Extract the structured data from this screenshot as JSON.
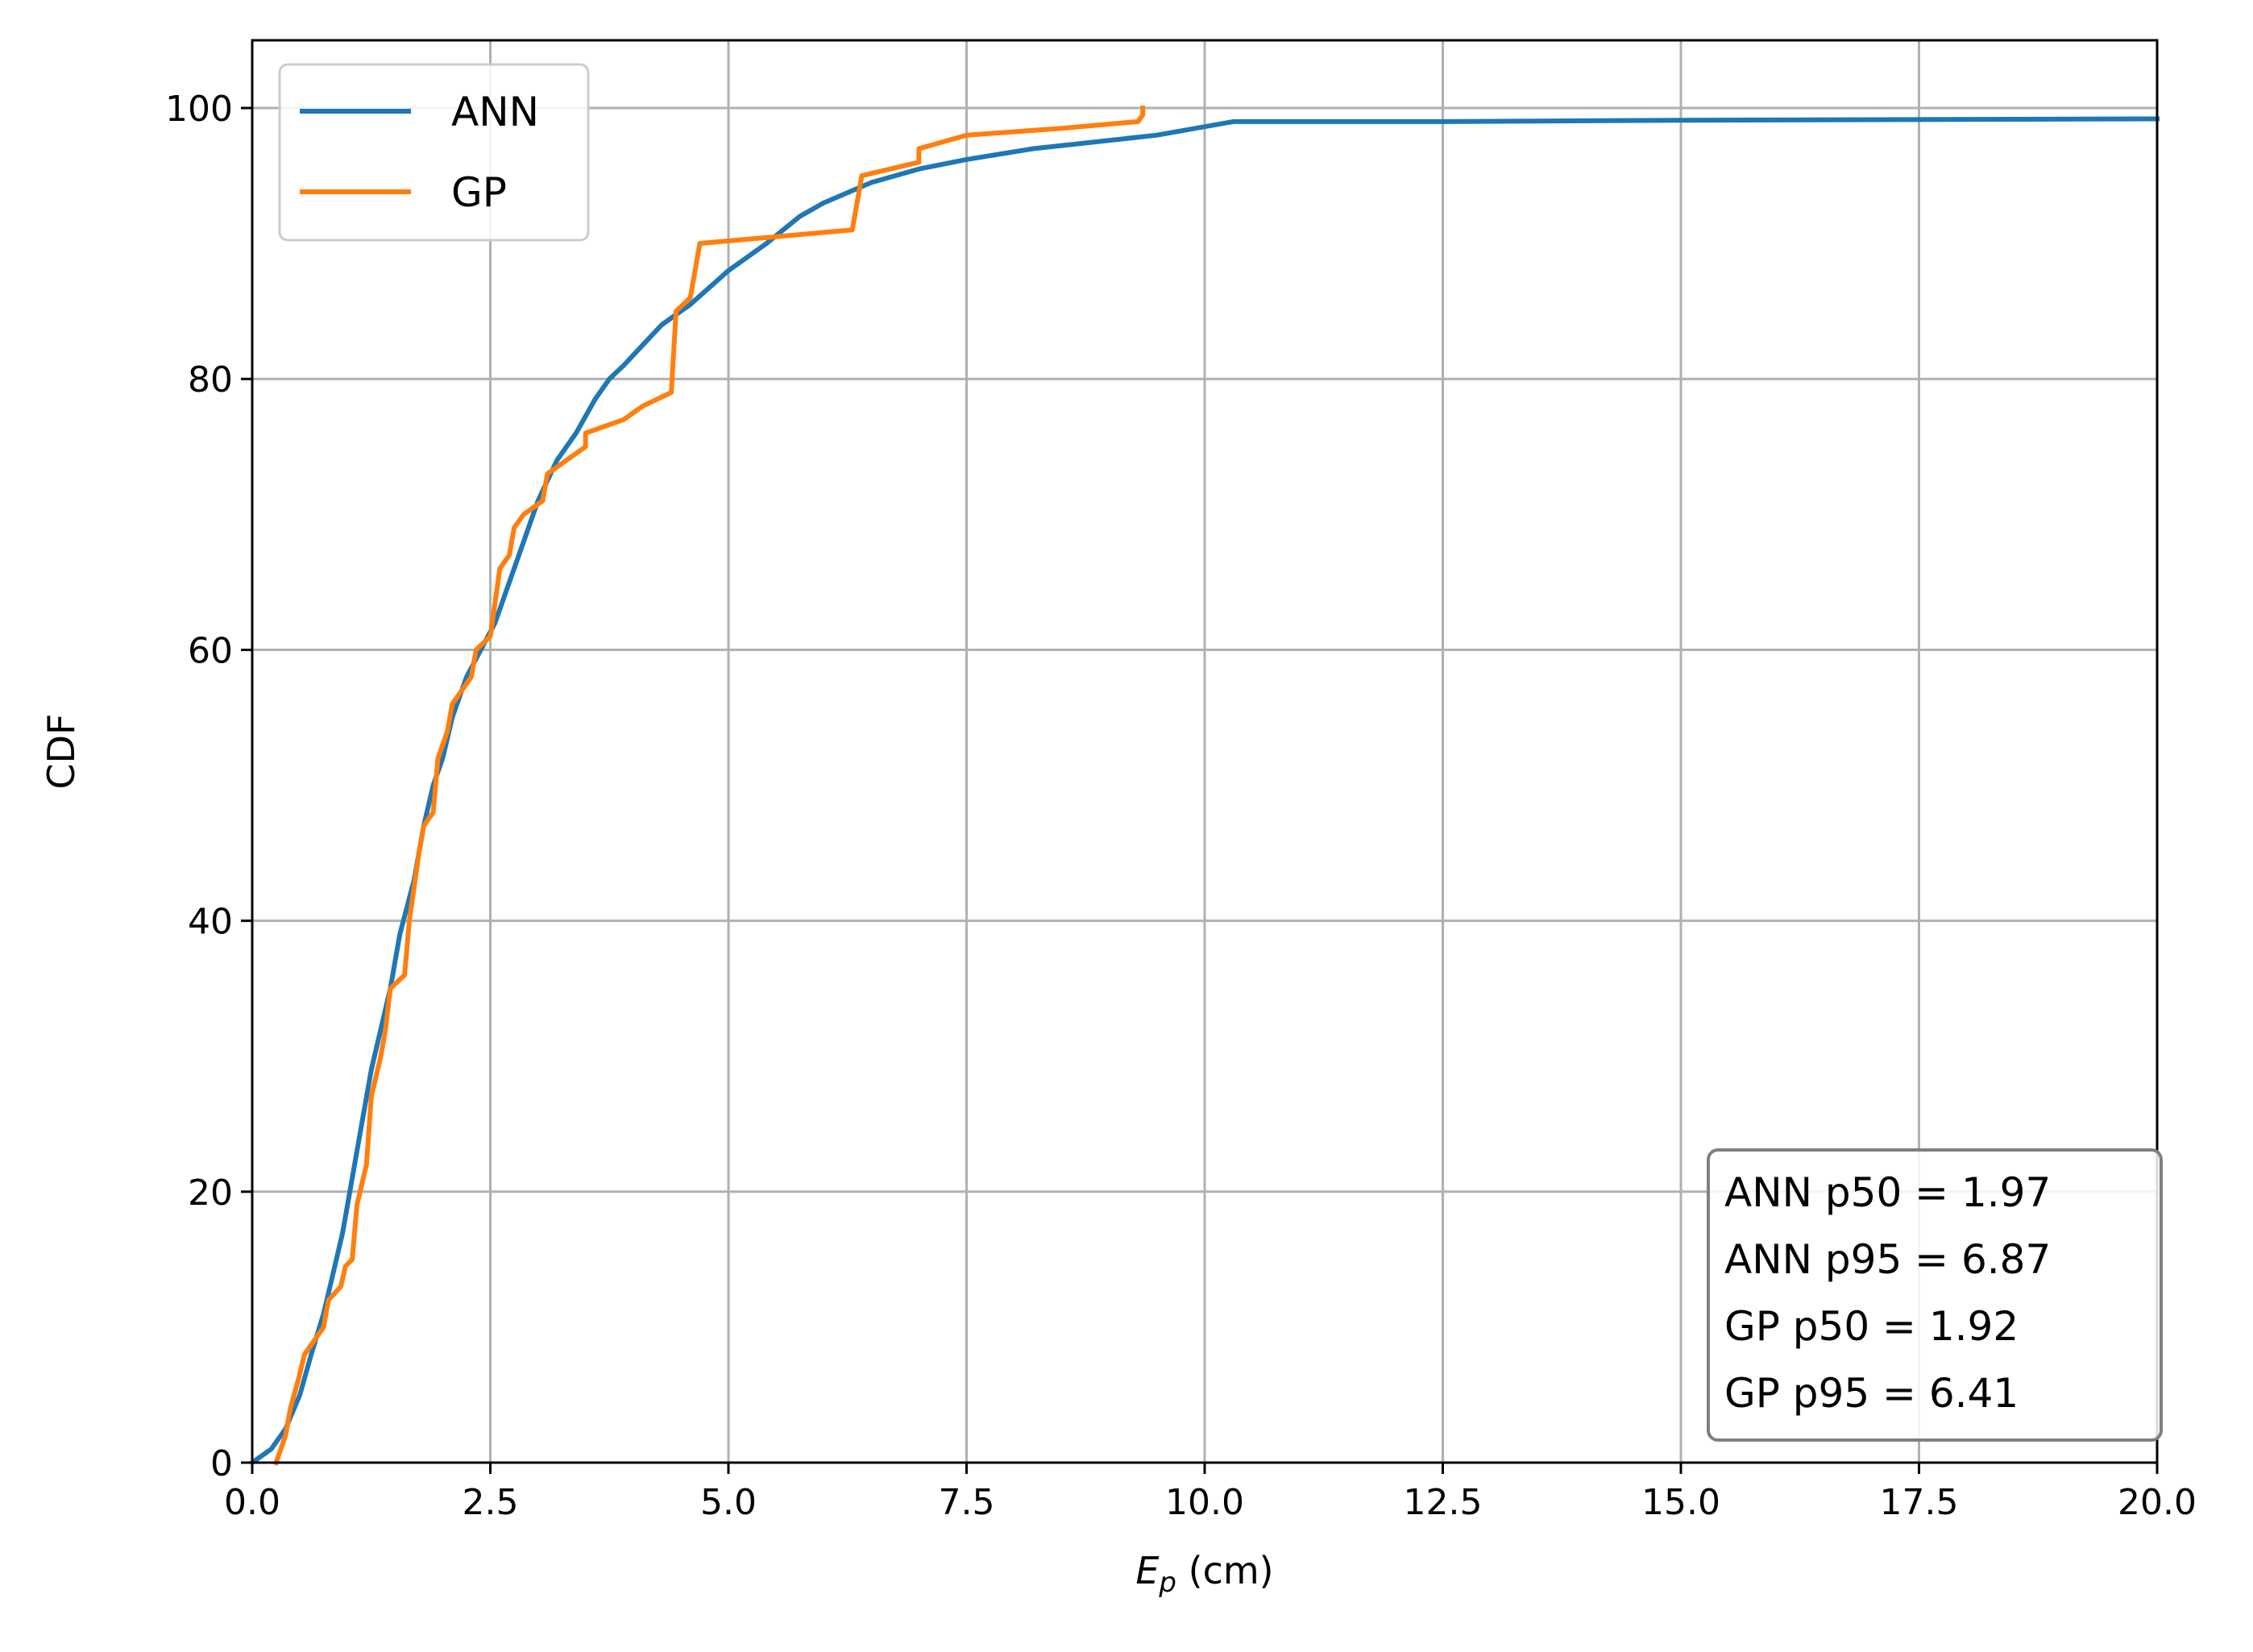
{
  "chart_data": {
    "type": "line",
    "title": "",
    "xlabel_main": "E",
    "xlabel_sub": "p",
    "xlabel_rest": " (cm)",
    "ylabel": "CDF",
    "xlim": [
      0,
      20
    ],
    "ylim": [
      0,
      105
    ],
    "xticks": [
      0,
      2.5,
      5,
      7.5,
      10,
      12.5,
      15,
      17.5,
      20
    ],
    "xtick_labels": [
      "0.0",
      "2.5",
      "5.0",
      "7.5",
      "10.0",
      "12.5",
      "15.0",
      "17.5",
      "20.0"
    ],
    "yticks": [
      0,
      20,
      40,
      60,
      80,
      100
    ],
    "ytick_labels": [
      "0",
      "20",
      "40",
      "60",
      "80",
      "100"
    ],
    "grid": true,
    "legend_position": "top-left",
    "series": [
      {
        "name": "ANN",
        "color": "#1f77b4",
        "points": [
          [
            0.0,
            0
          ],
          [
            0.2,
            1
          ],
          [
            0.35,
            2.5
          ],
          [
            0.5,
            5
          ],
          [
            0.62,
            8
          ],
          [
            0.75,
            11
          ],
          [
            0.85,
            14
          ],
          [
            0.95,
            17
          ],
          [
            1.05,
            21
          ],
          [
            1.15,
            25
          ],
          [
            1.25,
            29
          ],
          [
            1.35,
            32
          ],
          [
            1.45,
            35
          ],
          [
            1.55,
            39
          ],
          [
            1.7,
            43
          ],
          [
            1.8,
            47
          ],
          [
            1.9,
            50
          ],
          [
            2.0,
            52
          ],
          [
            2.1,
            55
          ],
          [
            2.25,
            58
          ],
          [
            2.4,
            60
          ],
          [
            2.55,
            62
          ],
          [
            2.7,
            65
          ],
          [
            2.85,
            68
          ],
          [
            3.0,
            71
          ],
          [
            3.2,
            74
          ],
          [
            3.4,
            76
          ],
          [
            3.6,
            78.5
          ],
          [
            3.75,
            80
          ],
          [
            3.9,
            81
          ],
          [
            4.1,
            82.5
          ],
          [
            4.3,
            84
          ],
          [
            4.6,
            85.5
          ],
          [
            5.0,
            88
          ],
          [
            5.4,
            90
          ],
          [
            5.75,
            92
          ],
          [
            6.0,
            93
          ],
          [
            6.5,
            94.5
          ],
          [
            7.0,
            95.5
          ],
          [
            7.5,
            96.2
          ],
          [
            8.2,
            97
          ],
          [
            9.5,
            98
          ],
          [
            10.3,
            99
          ],
          [
            12.5,
            99
          ],
          [
            15.0,
            99.1
          ],
          [
            20.0,
            99.2
          ]
        ]
      },
      {
        "name": "GP",
        "color": "#ff7f0e",
        "points": [
          [
            0.25,
            0
          ],
          [
            0.35,
            2
          ],
          [
            0.4,
            4
          ],
          [
            0.48,
            6
          ],
          [
            0.55,
            8
          ],
          [
            0.65,
            9
          ],
          [
            0.75,
            10
          ],
          [
            0.8,
            12
          ],
          [
            0.93,
            13
          ],
          [
            0.98,
            14.5
          ],
          [
            1.05,
            15
          ],
          [
            1.1,
            19
          ],
          [
            1.2,
            22
          ],
          [
            1.25,
            27
          ],
          [
            1.35,
            30
          ],
          [
            1.4,
            32
          ],
          [
            1.45,
            35
          ],
          [
            1.6,
            36
          ],
          [
            1.65,
            40
          ],
          [
            1.75,
            45
          ],
          [
            1.8,
            47
          ],
          [
            1.9,
            48
          ],
          [
            1.95,
            52
          ],
          [
            2.05,
            54
          ],
          [
            2.1,
            56
          ],
          [
            2.3,
            58
          ],
          [
            2.35,
            60
          ],
          [
            2.5,
            61
          ],
          [
            2.6,
            66
          ],
          [
            2.7,
            67
          ],
          [
            2.75,
            69
          ],
          [
            2.85,
            70
          ],
          [
            3.05,
            71
          ],
          [
            3.1,
            73
          ],
          [
            3.3,
            74
          ],
          [
            3.5,
            75
          ],
          [
            3.5,
            76
          ],
          [
            3.9,
            77
          ],
          [
            4.1,
            78
          ],
          [
            4.4,
            79
          ],
          [
            4.45,
            85
          ],
          [
            4.6,
            86
          ],
          [
            4.65,
            88
          ],
          [
            4.7,
            90
          ],
          [
            5.5,
            90.5
          ],
          [
            6.3,
            91
          ],
          [
            6.35,
            93
          ],
          [
            6.4,
            95
          ],
          [
            7.0,
            96
          ],
          [
            7.0,
            97
          ],
          [
            7.5,
            98
          ],
          [
            8.5,
            98.5
          ],
          [
            9.3,
            99
          ],
          [
            9.35,
            99.5
          ],
          [
            9.35,
            100
          ]
        ]
      }
    ],
    "annotation": [
      "ANN p50 = 1.97",
      "ANN p95 = 6.87",
      "GP p50 = 1.92",
      "GP p95 = 6.41"
    ]
  }
}
